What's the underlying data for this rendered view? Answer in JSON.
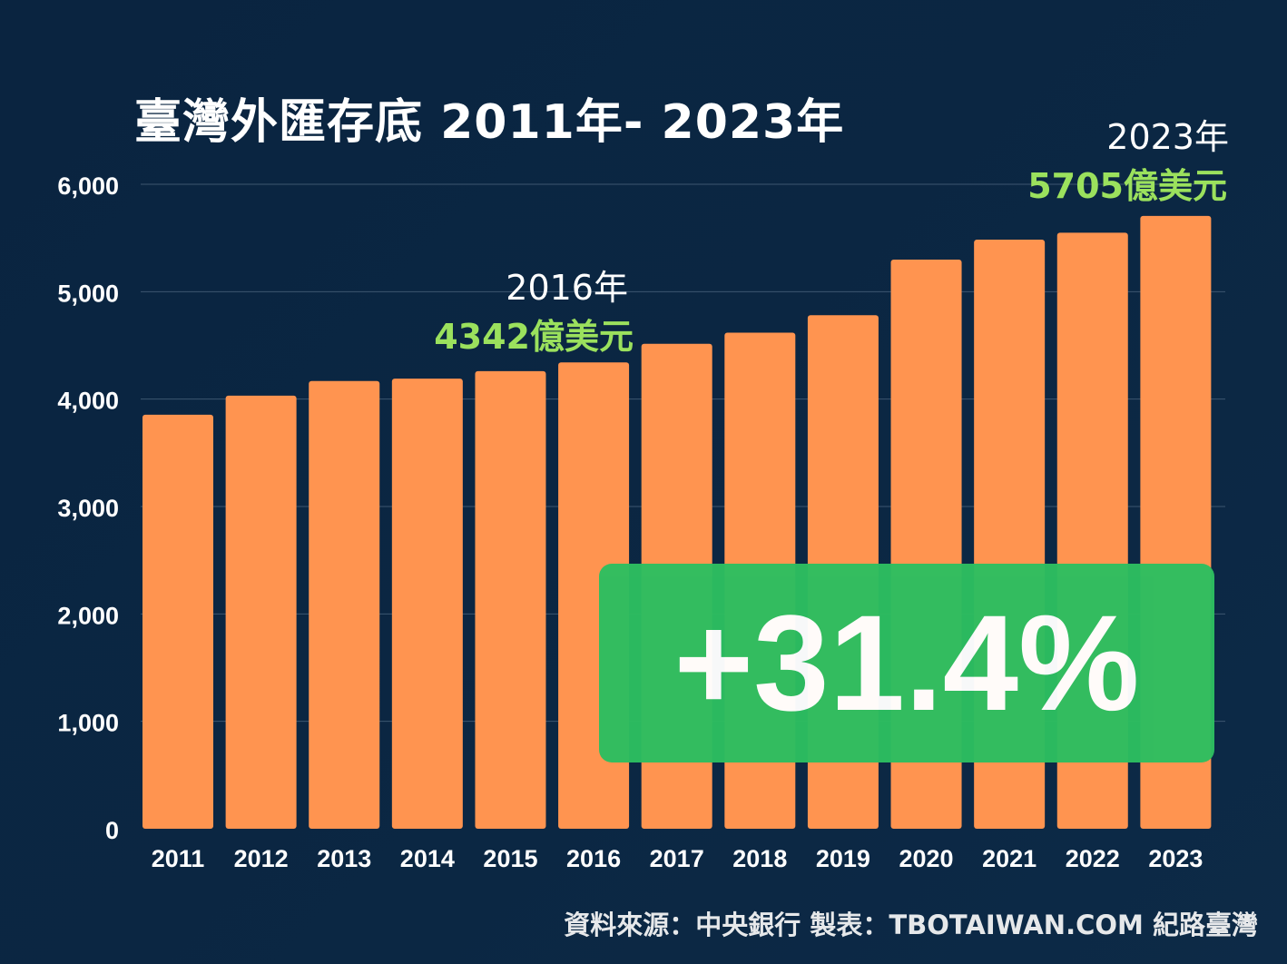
{
  "chart_data": {
    "type": "bar",
    "title": "臺灣外匯存底 2011年- 2023年",
    "categories": [
      "2011",
      "2012",
      "2013",
      "2014",
      "2015",
      "2016",
      "2017",
      "2018",
      "2019",
      "2020",
      "2021",
      "2022",
      "2023"
    ],
    "values": [
      3855,
      4032,
      4168,
      4190,
      4260,
      4342,
      4515,
      4618,
      4781,
      5299,
      5484,
      5549,
      5705
    ],
    "ylim": [
      0,
      6000
    ],
    "yticks": [
      "0",
      "1,000",
      "2,000",
      "3,000",
      "4,000",
      "5,000",
      "6,000"
    ],
    "grid": true,
    "bar_color": "#ff9450",
    "annotations": [
      {
        "year_label": "2016年",
        "value_label": "4342億美元"
      },
      {
        "year_label": "2023年",
        "value_label": "5705億美元"
      }
    ],
    "highlight": "+31.4%"
  },
  "source": "資料來源：中央銀行  製表：TBOTAIWAN.COM 紀路臺灣",
  "colors": {
    "background": "#0a2540",
    "bar": "#ff9450",
    "accent_green": "#9be15d",
    "badge": "#2dbe60"
  }
}
